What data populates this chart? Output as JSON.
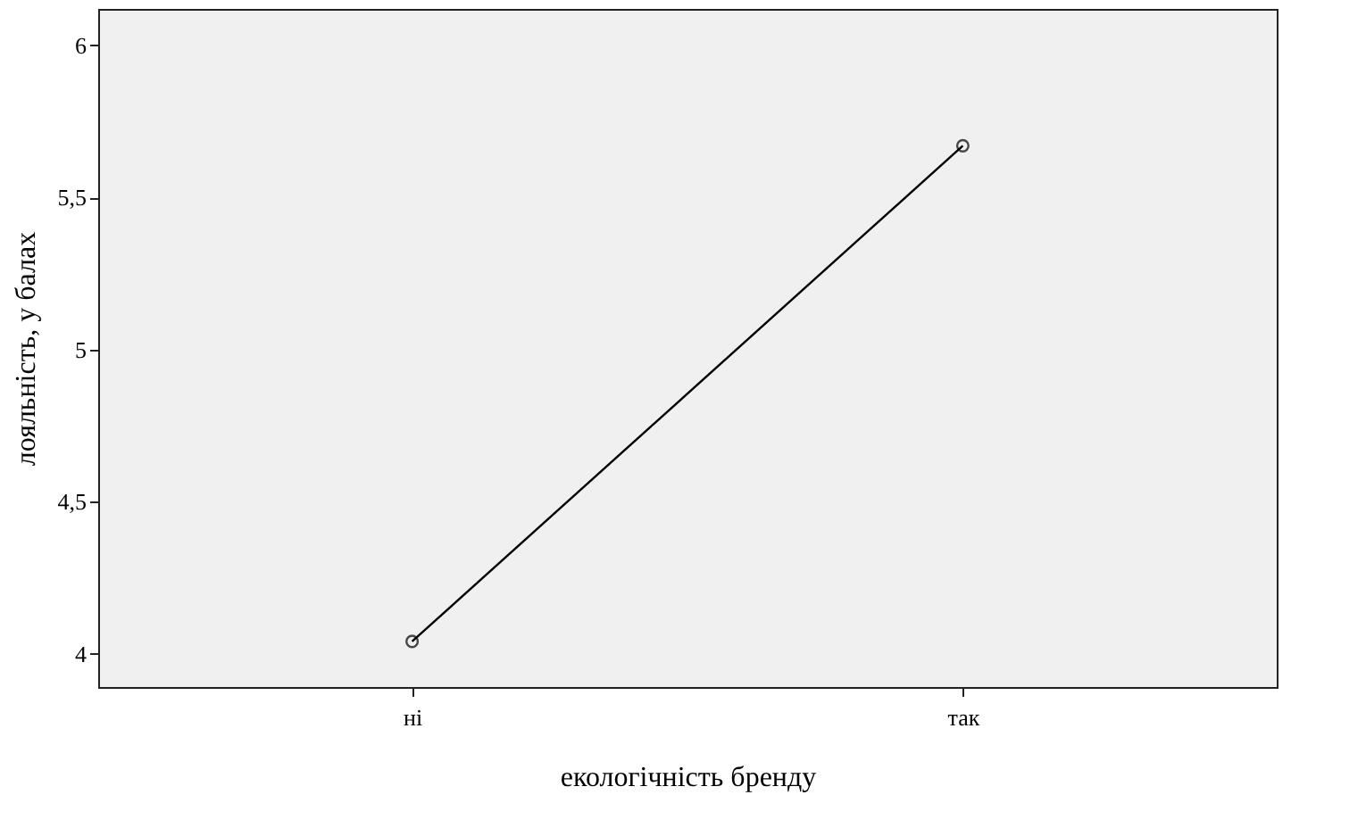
{
  "chart_data": {
    "type": "line",
    "xlabel": "екологічність бренду",
    "ylabel": "лояльність, у балах",
    "categories": [
      "ні",
      "так"
    ],
    "series": [
      {
        "color": "#000000",
        "values": [
          4.04,
          5.67
        ]
      }
    ],
    "ylim": [
      3.89,
      6.12
    ],
    "yticks": [
      4,
      {
        "value": 4.5,
        "label": "4,5"
      },
      5,
      {
        "value": 5.5,
        "label": "5,5"
      },
      6
    ],
    "marker": "circle",
    "line_style": "solid",
    "grid": false
  }
}
